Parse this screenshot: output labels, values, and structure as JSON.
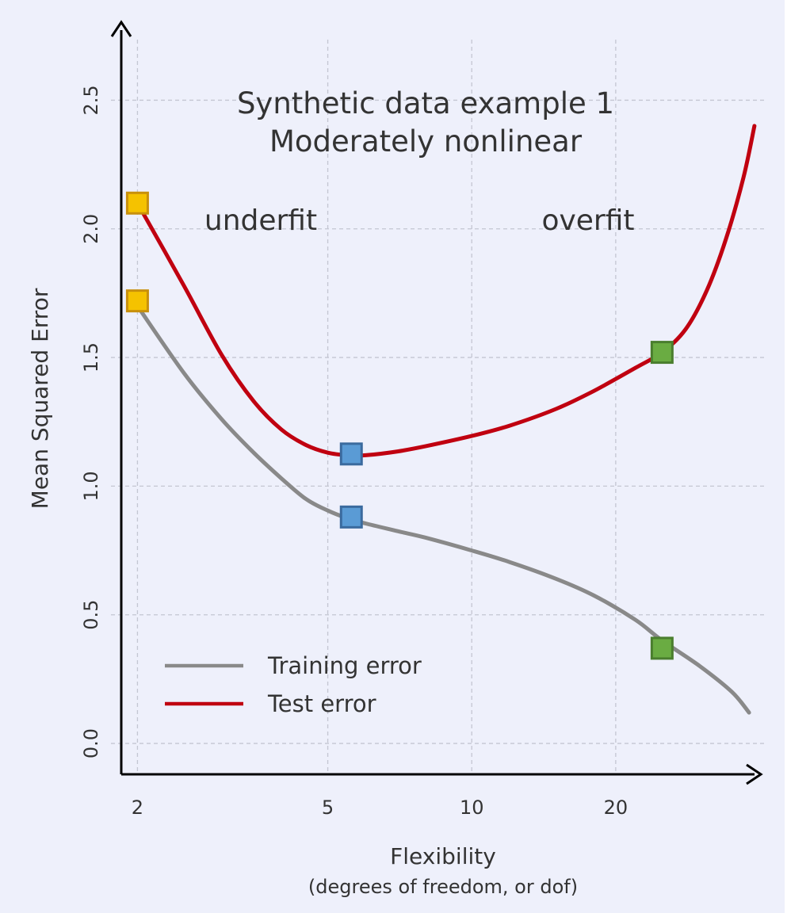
{
  "chart_data": {
    "type": "line",
    "title": [
      "Synthetic data example 1",
      "Moderately nonlinear"
    ],
    "xlabel": "Flexibility",
    "xlabel_sub": "(degrees of freedom, or dof)",
    "ylabel": "Mean Squared Error",
    "x_scale": "log",
    "x_ticks": [
      2,
      5,
      10,
      20
    ],
    "y_ticks": [
      0.0,
      0.5,
      1.0,
      1.5,
      2.0,
      2.5
    ],
    "xlim": [
      1.85,
      41
    ],
    "ylim": [
      -0.12,
      2.72
    ],
    "grid": true,
    "legend_position": "bottom-left",
    "annotations": [
      {
        "text": "underfit",
        "x": 3.0,
        "y": 1.9
      },
      {
        "text": "overfit",
        "x": 20.0,
        "y": 1.9
      }
    ],
    "series": [
      {
        "name": "Training error",
        "color": "#898989",
        "x": [
          2,
          2.5,
          3,
          3.5,
          4,
          4.5,
          5,
          5.5,
          6,
          7,
          8,
          10,
          12,
          15,
          18,
          22,
          25,
          30,
          35,
          38
        ],
        "y": [
          1.7,
          1.44,
          1.26,
          1.13,
          1.03,
          0.95,
          0.905,
          0.875,
          0.855,
          0.825,
          0.8,
          0.75,
          0.705,
          0.64,
          0.575,
          0.48,
          0.4,
          0.3,
          0.2,
          0.12
        ]
      },
      {
        "name": "Test error",
        "color": "#c00010",
        "x": [
          2,
          2.5,
          3,
          3.5,
          4,
          4.5,
          5,
          5.5,
          6,
          7,
          8,
          10,
          12,
          15,
          18,
          22,
          25,
          28,
          31,
          34,
          37,
          39
        ],
        "y": [
          2.1,
          1.78,
          1.51,
          1.33,
          1.22,
          1.16,
          1.13,
          1.12,
          1.12,
          1.135,
          1.155,
          1.195,
          1.235,
          1.3,
          1.37,
          1.46,
          1.52,
          1.61,
          1.76,
          1.96,
          2.2,
          2.4
        ]
      }
    ],
    "markers": [
      {
        "x": 2,
        "y": 2.1,
        "color": "#f5c200",
        "edge": "#c8900c"
      },
      {
        "x": 2,
        "y": 1.72,
        "color": "#f5c200",
        "edge": "#c8900c"
      },
      {
        "x": 5.6,
        "y": 1.125,
        "color": "#5a9bd5",
        "edge": "#3a6a9e"
      },
      {
        "x": 5.6,
        "y": 0.88,
        "color": "#5a9bd5",
        "edge": "#3a6a9e"
      },
      {
        "x": 25,
        "y": 1.52,
        "color": "#6aac42",
        "edge": "#4a7e2e"
      },
      {
        "x": 25,
        "y": 0.37,
        "color": "#6aac42",
        "edge": "#4a7e2e"
      }
    ]
  }
}
